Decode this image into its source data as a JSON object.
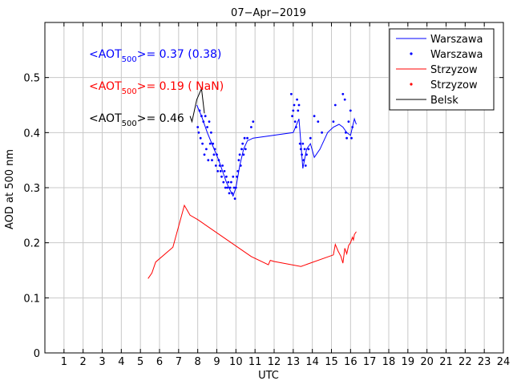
{
  "chart_data": {
    "type": "line",
    "title": "07−Apr−2019",
    "xlabel": "UTC",
    "ylabel": "AOD at 500 nm",
    "xlim": [
      0,
      24
    ],
    "ylim": [
      0,
      0.6
    ],
    "xticks": [
      1,
      2,
      3,
      4,
      5,
      6,
      7,
      8,
      9,
      10,
      11,
      12,
      13,
      14,
      15,
      16,
      17,
      18,
      19,
      20,
      21,
      22,
      23,
      24
    ],
    "yticks": [
      0,
      0.1,
      0.2,
      0.3,
      0.4,
      0.5
    ],
    "grid": true,
    "legend_position": "top-right",
    "legend": [
      {
        "label": "Warszawa",
        "style": "line",
        "color": "#0000ff"
      },
      {
        "label": "Warszawa",
        "style": "dot",
        "color": "#0000ff"
      },
      {
        "label": "Strzyzow",
        "style": "line",
        "color": "#ff0000"
      },
      {
        "label": "Strzyzow",
        "style": "dot",
        "color": "#ff0000"
      },
      {
        "label": "Belsk",
        "style": "line",
        "color": "#000000"
      }
    ],
    "annotations": [
      {
        "prefix": "<AOT",
        "sub": "500",
        "suffix": ">= 0.37 (0.38)",
        "color": "#0000ff"
      },
      {
        "prefix": "<AOT",
        "sub": "500",
        "suffix": ">= 0.19 ( NaN)",
        "color": "#ff0000"
      },
      {
        "prefix": "<AOT",
        "sub": "500",
        "suffix": ">= 0.46",
        "color": "#000000"
      }
    ],
    "series": [
      {
        "name": "Warszawa",
        "style": "line",
        "color": "#0000ff",
        "x": [
          7.95,
          8.2,
          8.5,
          8.8,
          9.1,
          9.3,
          9.5,
          9.7,
          9.85,
          10.0,
          10.2,
          10.4,
          10.6,
          10.9,
          13.0,
          13.3,
          13.5,
          13.7,
          13.9,
          14.1,
          14.4,
          14.8,
          15.1,
          15.4,
          15.6,
          15.8,
          16.0,
          16.2,
          16.3
        ],
        "y": [
          0.45,
          0.43,
          0.4,
          0.375,
          0.35,
          0.33,
          0.31,
          0.295,
          0.285,
          0.3,
          0.34,
          0.37,
          0.385,
          0.39,
          0.4,
          0.425,
          0.335,
          0.37,
          0.38,
          0.355,
          0.37,
          0.4,
          0.41,
          0.415,
          0.41,
          0.4,
          0.395,
          0.425,
          0.415
        ]
      },
      {
        "name": "Warszawa",
        "style": "dot",
        "color": "#0000ff",
        "x": [
          8.0,
          8.05,
          8.1,
          8.15,
          8.2,
          8.25,
          8.3,
          8.35,
          8.4,
          8.45,
          8.5,
          8.55,
          8.6,
          8.65,
          8.7,
          8.75,
          8.8,
          8.85,
          8.9,
          8.95,
          9.0,
          9.05,
          9.1,
          9.15,
          9.2,
          9.25,
          9.3,
          9.35,
          9.4,
          9.45,
          9.5,
          9.55,
          9.6,
          9.65,
          9.7,
          9.75,
          9.8,
          9.85,
          9.9,
          9.95,
          10.0,
          10.05,
          10.1,
          10.15,
          10.2,
          10.25,
          10.3,
          10.35,
          10.4,
          10.45,
          10.5,
          10.6,
          10.8,
          10.9,
          12.9,
          12.95,
          13.0,
          13.05,
          13.1,
          13.15,
          13.2,
          13.25,
          13.3,
          13.35,
          13.4,
          13.45,
          13.5,
          13.55,
          13.6,
          13.65,
          13.7,
          13.8,
          13.9,
          14.1,
          14.3,
          14.5,
          15.1,
          15.2,
          15.6,
          15.7,
          15.75,
          15.8,
          15.9,
          16.0,
          16.05,
          16.1
        ],
        "y": [
          0.41,
          0.4,
          0.44,
          0.39,
          0.43,
          0.38,
          0.42,
          0.36,
          0.43,
          0.37,
          0.41,
          0.35,
          0.42,
          0.38,
          0.4,
          0.35,
          0.38,
          0.36,
          0.37,
          0.34,
          0.36,
          0.33,
          0.35,
          0.34,
          0.33,
          0.32,
          0.34,
          0.31,
          0.33,
          0.3,
          0.32,
          0.3,
          0.31,
          0.29,
          0.3,
          0.31,
          0.29,
          0.32,
          0.3,
          0.28,
          0.3,
          0.32,
          0.33,
          0.35,
          0.36,
          0.34,
          0.37,
          0.38,
          0.36,
          0.39,
          0.37,
          0.39,
          0.41,
          0.42,
          0.47,
          0.43,
          0.44,
          0.45,
          0.42,
          0.41,
          0.46,
          0.44,
          0.45,
          0.38,
          0.37,
          0.36,
          0.38,
          0.35,
          0.37,
          0.34,
          0.36,
          0.37,
          0.39,
          0.43,
          0.42,
          0.4,
          0.42,
          0.45,
          0.47,
          0.46,
          0.4,
          0.39,
          0.42,
          0.44,
          0.39,
          0.41
        ]
      },
      {
        "name": "Strzyzow",
        "style": "line",
        "color": "#ff0000",
        "x": [
          5.4,
          5.6,
          5.8,
          6.7,
          7.3,
          7.6,
          8.0,
          10.8,
          11.7,
          11.8,
          12.0,
          13.4,
          15.1,
          15.2,
          15.35,
          15.5,
          15.6,
          15.7,
          15.8,
          15.9,
          16.0,
          16.1,
          16.15,
          16.2,
          16.3
        ],
        "y": [
          0.135,
          0.145,
          0.165,
          0.192,
          0.268,
          0.25,
          0.242,
          0.175,
          0.16,
          0.168,
          0.166,
          0.157,
          0.178,
          0.197,
          0.185,
          0.175,
          0.163,
          0.19,
          0.18,
          0.195,
          0.2,
          0.21,
          0.205,
          0.215,
          0.22
        ]
      },
      {
        "name": "Belsk",
        "style": "line",
        "color": "#000000",
        "x": [
          7.6,
          7.7,
          7.95,
          8.2,
          8.35
        ],
        "y": [
          0.43,
          0.42,
          0.46,
          0.48,
          0.435
        ]
      }
    ]
  }
}
